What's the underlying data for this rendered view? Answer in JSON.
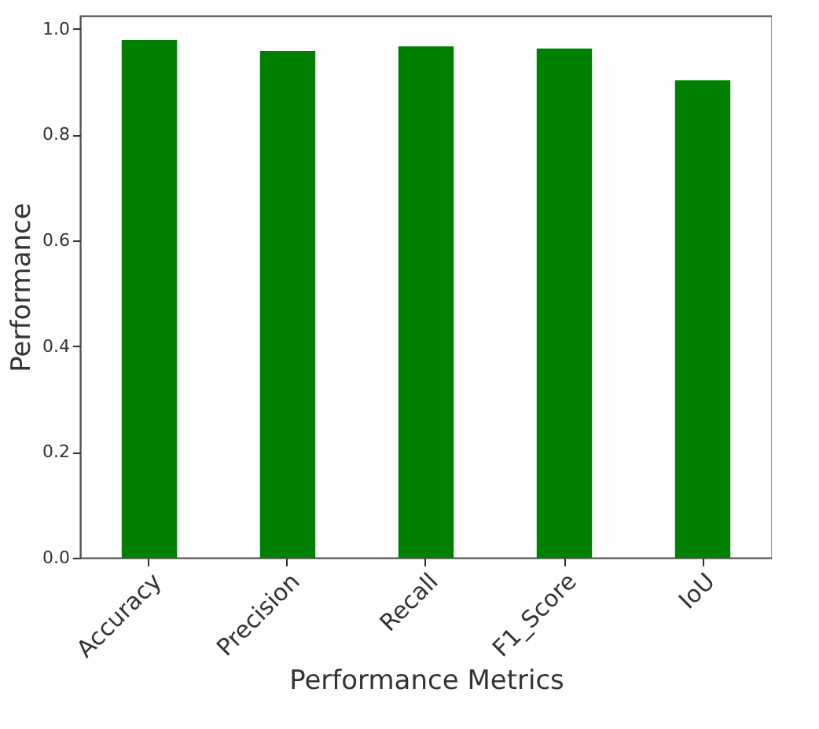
{
  "chart_data": {
    "type": "bar",
    "xlabel": "Performance Metrics",
    "ylabel": "Performance",
    "categories": [
      "Accuracy",
      "Precision",
      "Recall",
      "F1_Score",
      "IoU"
    ],
    "values": [
      0.979,
      0.958,
      0.967,
      0.963,
      0.903
    ],
    "color": "#008000",
    "ylim": [
      0,
      1.025
    ],
    "yticks": [
      {
        "value": 0,
        "label": "0.0"
      },
      0.2,
      0.4,
      0.6,
      0.8,
      {
        "value": 1,
        "label": "1.0"
      }
    ],
    "grid": false
  }
}
